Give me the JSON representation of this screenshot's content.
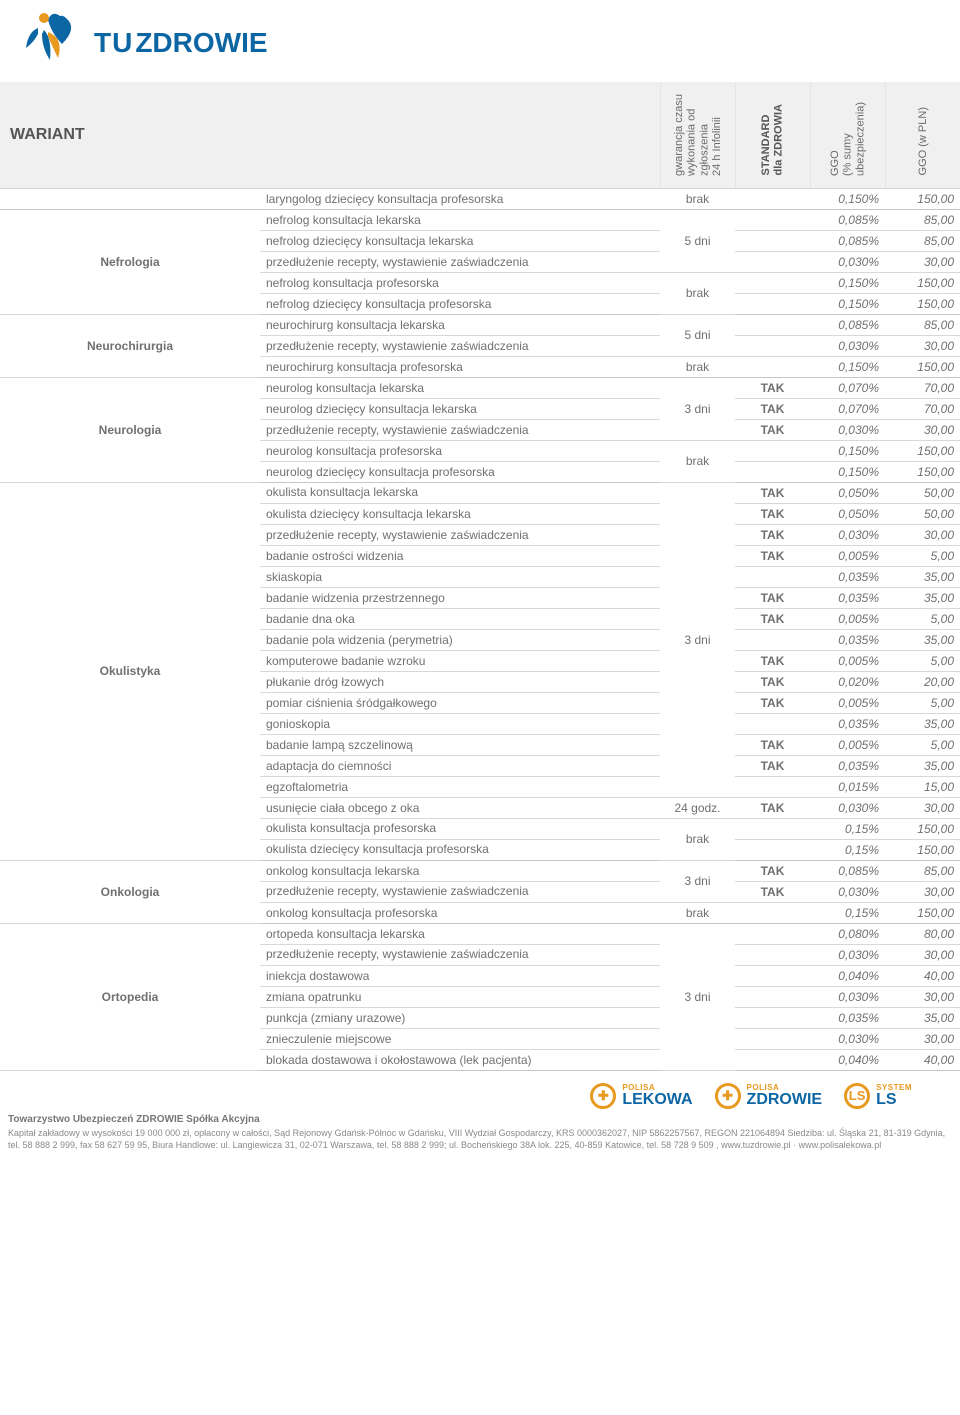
{
  "header": {
    "title": "WARIANT",
    "col_gw": "gwarancja czasu\nwykonania od\nzgłoszenia\n24 h Infolinii",
    "col_std": "STANDARD\ndla ZDROWIA",
    "col_pct": "GGO\n(% sumy\nubezpieczenia)",
    "col_pln": "GGO (w PLN)"
  },
  "logo": {
    "tu": "TU",
    "zdrowie": "ZDROWIE"
  },
  "cols": {
    "cat_w": 260,
    "svc_w": 400,
    "gw_w": 75,
    "std_w": 75,
    "pct_w": 75,
    "pln_w": 75
  },
  "sections": [
    {
      "category": "",
      "rows": [
        {
          "svc": "laryngolog dziecięcy konsultacja profesorska",
          "gw": "brak",
          "gw_span": 1,
          "std": "",
          "pct": "0,150%",
          "pln": "150,00"
        }
      ]
    },
    {
      "category": "Nefrologia",
      "rows": [
        {
          "svc": "nefrolog konsultacja lekarska",
          "gw": "5 dni",
          "gw_span": 3,
          "std": "",
          "pct": "0,085%",
          "pln": "85,00"
        },
        {
          "svc": "nefrolog dziecięcy konsultacja lekarska",
          "std": "",
          "pct": "0,085%",
          "pln": "85,00"
        },
        {
          "svc": "przedłużenie recepty, wystawienie zaświadczenia",
          "std": "",
          "pct": "0,030%",
          "pln": "30,00"
        },
        {
          "svc": "nefrolog konsultacja profesorska",
          "gw": "brak",
          "gw_span": 2,
          "std": "",
          "pct": "0,150%",
          "pln": "150,00"
        },
        {
          "svc": "nefrolog dziecięcy konsultacja profesorska",
          "std": "",
          "pct": "0,150%",
          "pln": "150,00"
        }
      ]
    },
    {
      "category": "Neurochirurgia",
      "rows": [
        {
          "svc": "neurochirurg konsultacja lekarska",
          "gw": "5 dni",
          "gw_span": 2,
          "std": "",
          "pct": "0,085%",
          "pln": "85,00"
        },
        {
          "svc": "przedłużenie recepty, wystawienie zaświadczenia",
          "std": "",
          "pct": "0,030%",
          "pln": "30,00"
        },
        {
          "svc": "neurochirurg konsultacja profesorska",
          "gw": "brak",
          "gw_span": 1,
          "std": "",
          "pct": "0,150%",
          "pln": "150,00"
        }
      ]
    },
    {
      "category": "Neurologia",
      "rows": [
        {
          "svc": "neurolog konsultacja lekarska",
          "gw": "3 dni",
          "gw_span": 3,
          "std": "TAK",
          "pct": "0,070%",
          "pln": "70,00"
        },
        {
          "svc": "neurolog  dziecięcy konsultacja lekarska",
          "std": "TAK",
          "pct": "0,070%",
          "pln": "70,00"
        },
        {
          "svc": "przedłużenie recepty, wystawienie zaświadczenia",
          "std": "TAK",
          "pct": "0,030%",
          "pln": "30,00"
        },
        {
          "svc": "neurolog konsultacja profesorska",
          "gw": "brak",
          "gw_span": 2,
          "std": "",
          "pct": "0,150%",
          "pln": "150,00"
        },
        {
          "svc": "neurolog dziecięcy konsultacja profesorska",
          "std": "",
          "pct": "0,150%",
          "pln": "150,00"
        }
      ]
    },
    {
      "category": "Okulistyka",
      "rows": [
        {
          "svc": "okulista konsultacja lekarska",
          "gw": "3 dni",
          "gw_span": 15,
          "std": "TAK",
          "pct": "0,050%",
          "pln": "50,00",
          "tall": true
        },
        {
          "svc": "okulista dziecięcy konsultacja lekarska",
          "std": "TAK",
          "pct": "0,050%",
          "pln": "50,00"
        },
        {
          "svc": "przedłużenie recepty, wystawienie zaświadczenia",
          "std": "TAK",
          "pct": "0,030%",
          "pln": "30,00"
        },
        {
          "svc": "badanie ostrości widzenia",
          "std": "TAK",
          "pct": "0,005%",
          "pln": "5,00"
        },
        {
          "svc": "skiaskopia",
          "std": "",
          "pct": "0,035%",
          "pln": "35,00"
        },
        {
          "svc": "badanie widzenia przestrzennego",
          "std": "TAK",
          "pct": "0,035%",
          "pln": "35,00"
        },
        {
          "svc": "badanie dna oka",
          "std": "TAK",
          "pct": "0,005%",
          "pln": "5,00"
        },
        {
          "svc": "badanie pola widzenia (perymetria)",
          "std": "",
          "pct": "0,035%",
          "pln": "35,00"
        },
        {
          "svc": "komputerowe badanie wzroku",
          "std": "TAK",
          "pct": "0,005%",
          "pln": "5,00"
        },
        {
          "svc": "płukanie dróg łzowych",
          "std": "TAK",
          "pct": "0,020%",
          "pln": "20,00"
        },
        {
          "svc": "pomiar ciśnienia śródgałkowego",
          "std": "TAK",
          "pct": "0,005%",
          "pln": "5,00"
        },
        {
          "svc": "gonioskopia",
          "std": "",
          "pct": "0,035%",
          "pln": "35,00"
        },
        {
          "svc": "badanie lampą szczelinową",
          "std": "TAK",
          "pct": "0,005%",
          "pln": "5,00"
        },
        {
          "svc": "adaptacja do ciemności",
          "std": "TAK",
          "pct": "0,035%",
          "pln": "35,00"
        },
        {
          "svc": "egzoftalometria",
          "std": "",
          "pct": "0,015%",
          "pln": "15,00"
        },
        {
          "svc": "usunięcie ciała obcego z oka",
          "gw": "24 godz.",
          "gw_span": 1,
          "std": "TAK",
          "pct": "0,030%",
          "pln": "30,00"
        },
        {
          "svc": "okulista konsultacja profesorska",
          "gw": "brak",
          "gw_span": 2,
          "std": "",
          "pct": "0,15%",
          "pln": "150,00",
          "tall": true
        },
        {
          "svc": "okulista dziecięcy konsultacja profesorska",
          "std": "",
          "pct": "0,15%",
          "pln": "150,00",
          "tall": true
        }
      ]
    },
    {
      "category": "Onkologia",
      "rows": [
        {
          "svc": "onkolog konsultacja lekarska",
          "gw": "3 dni",
          "gw_span": 2,
          "std": "TAK",
          "pct": "0,085%",
          "pln": "85,00"
        },
        {
          "svc": "przedłużenie recepty, wystawienie zaświadczenia",
          "std": "TAK",
          "pct": "0,030%",
          "pln": "30,00",
          "tall": true
        },
        {
          "svc": "onkolog konsultacja profesorska",
          "gw": "brak",
          "gw_span": 1,
          "std": "",
          "pct": "0,15%",
          "pln": "150,00"
        }
      ]
    },
    {
      "category": "Ortopedia",
      "rows": [
        {
          "svc": "ortopeda konsultacja lekarska",
          "gw": "3 dni",
          "gw_span": 7,
          "std": "",
          "pct": "0,080%",
          "pln": "80,00"
        },
        {
          "svc": "przedłużenie recepty, wystawienie zaświadczenia",
          "std": "",
          "pct": "0,030%",
          "pln": "30,00",
          "tall": true
        },
        {
          "svc": "iniekcja dostawowa",
          "std": "",
          "pct": "0,040%",
          "pln": "40,00"
        },
        {
          "svc": "zmiana opatrunku",
          "std": "",
          "pct": "0,030%",
          "pln": "30,00"
        },
        {
          "svc": "punkcja (zmiany urazowe)",
          "std": "",
          "pct": "0,035%",
          "pln": "35,00"
        },
        {
          "svc": "znieczulenie miejscowe",
          "std": "",
          "pct": "0,030%",
          "pln": "30,00"
        },
        {
          "svc": "blokada dostawowa i okołostawowa (lek pacjenta)",
          "std": "",
          "pct": "0,040%",
          "pln": "40,00"
        }
      ]
    }
  ],
  "footer": {
    "logos": [
      {
        "icon": "✚",
        "top": "POLISA",
        "bot": "LEKOWA"
      },
      {
        "icon": "✚",
        "top": "POLISA",
        "bot": "ZDROWIE"
      },
      {
        "icon": "LS",
        "top": "SYSTEM",
        "bot": "LS"
      }
    ],
    "line1": "Towarzystwo Ubezpieczeń ZDROWIE Spółka Akcyjna",
    "line2": "Kapitał zakładowy w wysokości 19 000 000 zł, opłacony w całości, Sąd Rejonowy Gdańsk-Północ w Gdańsku, VIII Wydział Gospodarczy, KRS 0000362027, NIP 5862257567, REGON 221064894 Siedziba: ul. Śląska 21, 81-319 Gdynia, tel. 58 888 2 999, fax 58 627 59 95, Biura Handlowe: ul. Langiewicza 31, 02-071 Warszawa, tel. 58 888 2 999; ul. Bocheńskiego 38A lok. 225, 40-859 Katowice, tel. 58 728 9 509 , www.tuzdrowie.pl · www.polisalekowa.pl"
  }
}
